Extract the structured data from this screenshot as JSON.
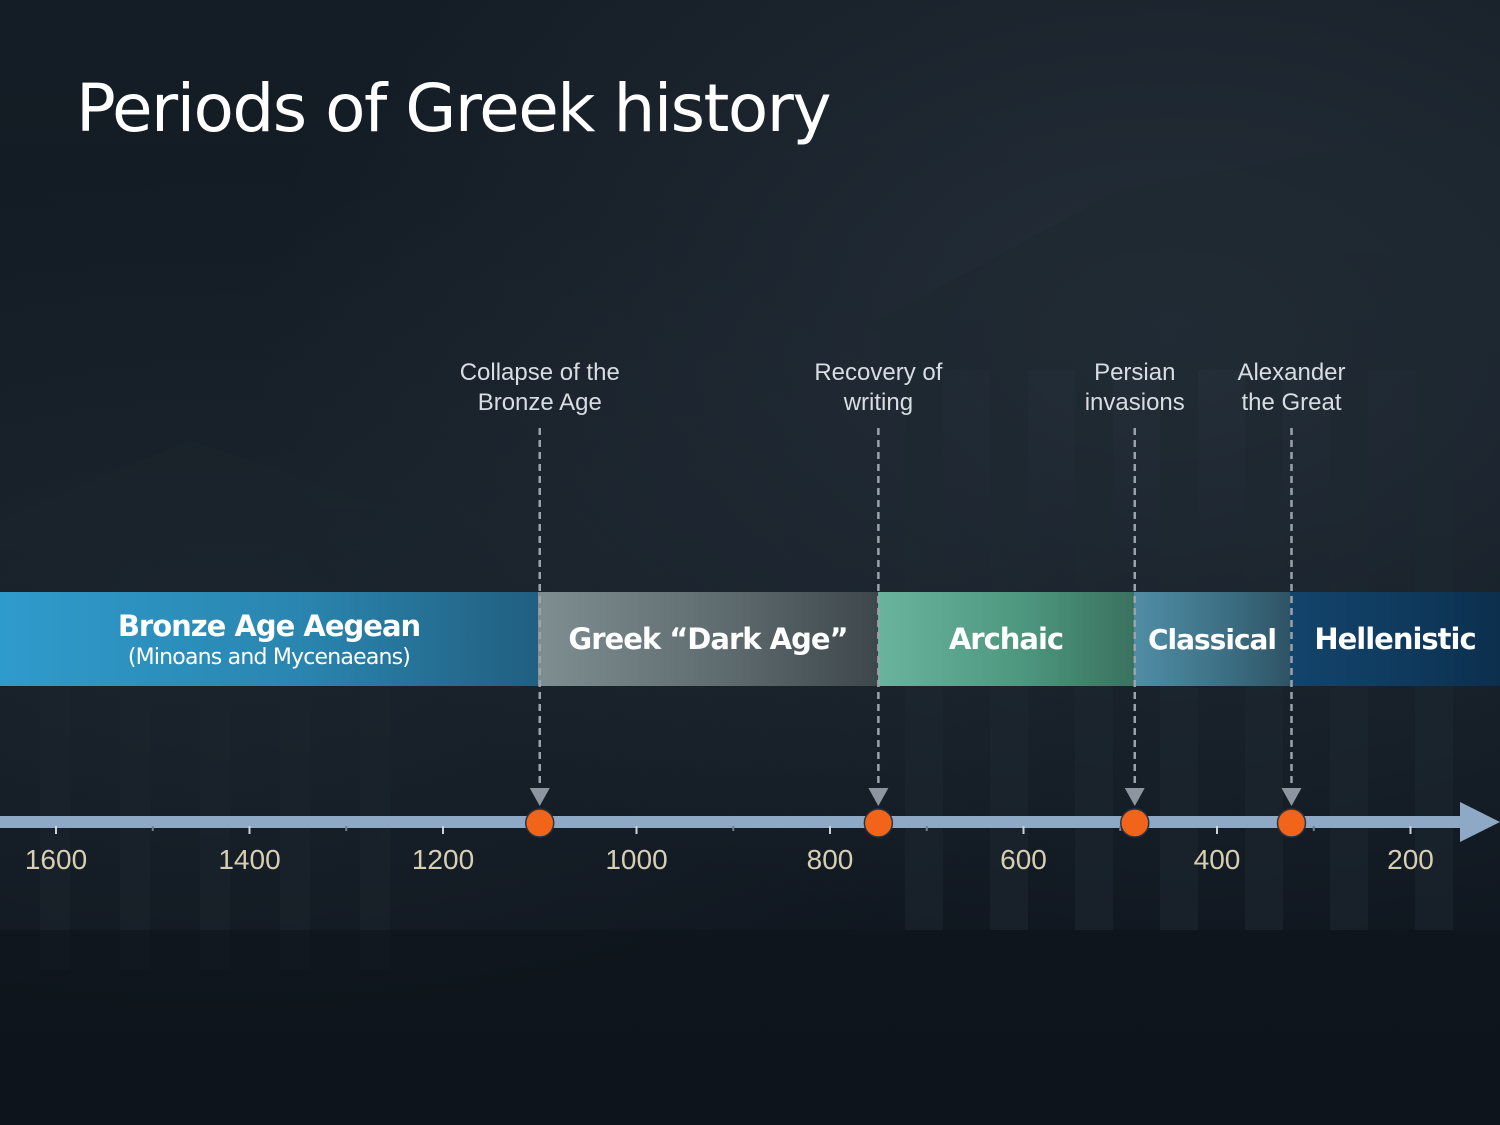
{
  "title": "Periods of Greek history",
  "axis": {
    "direction": "descending",
    "unit_note": "",
    "domain": [
      1600,
      150
    ],
    "tick_values": [
      1600,
      1500,
      1400,
      1300,
      1200,
      1100,
      1000,
      900,
      800,
      700,
      600,
      500,
      400,
      300,
      200
    ],
    "labeled_ticks": [
      1600,
      1400,
      1200,
      1000,
      800,
      600,
      400,
      200
    ],
    "labels": [
      "1600",
      "1400",
      "1200",
      "1000",
      "800",
      "600",
      "400",
      "200"
    ],
    "color": "#8ea9c6",
    "label_color": "#d7cfb2"
  },
  "periods": [
    {
      "id": "bronze",
      "label": "Bronze Age Aegean",
      "sublabel": "(Minoans and Mycenaeans)",
      "start": 1600,
      "end": 1100
    },
    {
      "id": "dark",
      "label": "Greek “Dark Age”",
      "start": 1100,
      "end": 750
    },
    {
      "id": "archaic",
      "label": "Archaic",
      "start": 750,
      "end": 485
    },
    {
      "id": "classical",
      "label": "Classical",
      "start": 485,
      "end": 323
    },
    {
      "id": "hellenistic",
      "label": "Hellenistic",
      "start": 323,
      "end": 150
    }
  ],
  "events": [
    {
      "id": "collapse",
      "label": "Collapse of the\nBronze Age",
      "line1": "Collapse of the",
      "line2": "Bronze Age",
      "year": 1100
    },
    {
      "id": "writing",
      "label": "Recovery of\nwriting",
      "line1": "Recovery of",
      "line2": "writing",
      "year": 750
    },
    {
      "id": "persian",
      "label": "Persian\ninvasions",
      "line1": "Persian",
      "line2": "invasions",
      "year": 485
    },
    {
      "id": "alexander",
      "label": "Alexander\nthe Great",
      "line1": "Alexander",
      "line2": "the Great",
      "year": 323
    }
  ],
  "marker_color": "#f26419",
  "guide_color": "#9aa3ab"
}
